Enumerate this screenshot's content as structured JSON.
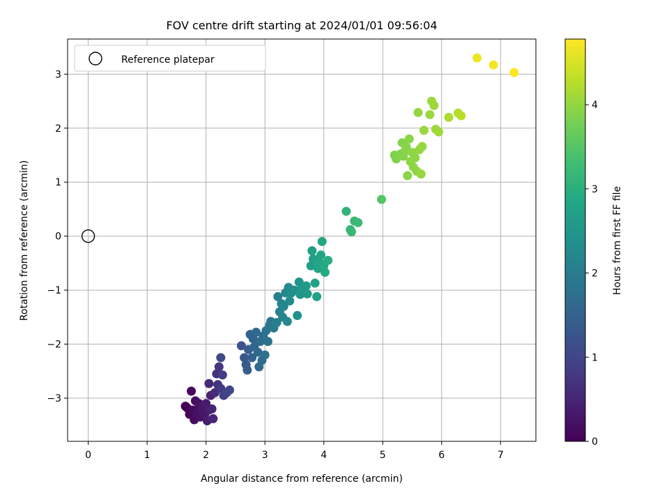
{
  "chart_data": {
    "type": "scatter",
    "title": "FOV centre drift starting at 2024/01/01 09:56:04",
    "xlabel": "Angular distance from reference (arcmin)",
    "ylabel": "Rotation from reference (arcmin)",
    "xlim": [
      -0.35,
      7.6
    ],
    "ylim": [
      -3.8,
      3.65
    ],
    "xticks": [
      "0",
      "1",
      "2",
      "3",
      "4",
      "5",
      "6",
      "7"
    ],
    "yticks": [
      "-3",
      "-2",
      "-1",
      "0",
      "1",
      "2",
      "3"
    ],
    "grid": true,
    "legend": {
      "placement": "top-left",
      "entries": [
        "Reference platepar"
      ]
    },
    "reference_point": {
      "x": 0,
      "y": 0
    },
    "colorbar": {
      "label": "Hours from first FF file",
      "range": [
        0,
        4.78
      ],
      "ticks": [
        "0",
        "1",
        "2",
        "3",
        "4"
      ],
      "colormap": "viridis"
    },
    "points": [
      {
        "x": 1.65,
        "y": -3.15,
        "t": 0.0
      },
      {
        "x": 1.68,
        "y": -3.18,
        "t": 0.03
      },
      {
        "x": 1.72,
        "y": -3.3,
        "t": 0.06
      },
      {
        "x": 1.75,
        "y": -2.87,
        "t": 0.1
      },
      {
        "x": 1.78,
        "y": -3.22,
        "t": 0.12
      },
      {
        "x": 1.8,
        "y": -3.4,
        "t": 0.15
      },
      {
        "x": 1.82,
        "y": -3.05,
        "t": 0.18
      },
      {
        "x": 1.85,
        "y": -3.25,
        "t": 0.2
      },
      {
        "x": 1.88,
        "y": -3.1,
        "t": 0.22
      },
      {
        "x": 1.9,
        "y": -3.35,
        "t": 0.25
      },
      {
        "x": 1.92,
        "y": -3.2,
        "t": 0.28
      },
      {
        "x": 1.95,
        "y": -3.15,
        "t": 0.3
      },
      {
        "x": 1.98,
        "y": -3.3,
        "t": 0.32
      },
      {
        "x": 2.0,
        "y": -3.1,
        "t": 0.35
      },
      {
        "x": 2.02,
        "y": -3.42,
        "t": 0.38
      },
      {
        "x": 2.05,
        "y": -3.22,
        "t": 0.4
      },
      {
        "x": 2.08,
        "y": -2.95,
        "t": 0.45
      },
      {
        "x": 2.1,
        "y": -3.2,
        "t": 0.48
      },
      {
        "x": 2.12,
        "y": -3.38,
        "t": 0.5
      },
      {
        "x": 2.05,
        "y": -2.73,
        "t": 0.55
      },
      {
        "x": 2.15,
        "y": -2.9,
        "t": 0.6
      },
      {
        "x": 2.18,
        "y": -2.55,
        "t": 0.65
      },
      {
        "x": 2.2,
        "y": -2.75,
        "t": 0.7
      },
      {
        "x": 2.22,
        "y": -2.42,
        "t": 0.75
      },
      {
        "x": 2.25,
        "y": -2.82,
        "t": 0.8
      },
      {
        "x": 2.28,
        "y": -2.57,
        "t": 0.85
      },
      {
        "x": 2.3,
        "y": -2.95,
        "t": 0.9
      },
      {
        "x": 2.35,
        "y": -2.9,
        "t": 0.95
      },
      {
        "x": 2.4,
        "y": -2.85,
        "t": 1.0
      },
      {
        "x": 2.25,
        "y": -2.25,
        "t": 1.05
      },
      {
        "x": 2.6,
        "y": -2.03,
        "t": 1.2
      },
      {
        "x": 2.65,
        "y": -2.25,
        "t": 1.3
      },
      {
        "x": 2.68,
        "y": -2.38,
        "t": 1.35
      },
      {
        "x": 2.7,
        "y": -2.48,
        "t": 1.4
      },
      {
        "x": 2.72,
        "y": -2.1,
        "t": 1.45
      },
      {
        "x": 2.75,
        "y": -1.82,
        "t": 1.5
      },
      {
        "x": 2.78,
        "y": -2.25,
        "t": 1.52
      },
      {
        "x": 2.8,
        "y": -1.9,
        "t": 1.55
      },
      {
        "x": 2.82,
        "y": -2.05,
        "t": 1.58
      },
      {
        "x": 2.85,
        "y": -1.78,
        "t": 1.6
      },
      {
        "x": 2.88,
        "y": -2.15,
        "t": 1.62
      },
      {
        "x": 2.9,
        "y": -2.42,
        "t": 1.65
      },
      {
        "x": 2.92,
        "y": -1.95,
        "t": 1.68
      },
      {
        "x": 2.95,
        "y": -2.3,
        "t": 1.7
      },
      {
        "x": 2.97,
        "y": -1.85,
        "t": 1.72
      },
      {
        "x": 3.0,
        "y": -2.2,
        "t": 1.75
      },
      {
        "x": 3.02,
        "y": -1.75,
        "t": 1.78
      },
      {
        "x": 3.05,
        "y": -1.95,
        "t": 1.8
      },
      {
        "x": 3.08,
        "y": -1.65,
        "t": 1.85
      },
      {
        "x": 3.1,
        "y": -1.58,
        "t": 1.9
      },
      {
        "x": 3.15,
        "y": -1.7,
        "t": 1.95
      },
      {
        "x": 3.2,
        "y": -1.6,
        "t": 2.0
      },
      {
        "x": 3.22,
        "y": -1.12,
        "t": 2.05
      },
      {
        "x": 3.25,
        "y": -1.4,
        "t": 2.1
      },
      {
        "x": 3.28,
        "y": -1.25,
        "t": 2.12
      },
      {
        "x": 3.3,
        "y": -1.5,
        "t": 2.15
      },
      {
        "x": 3.32,
        "y": -1.3,
        "t": 2.18
      },
      {
        "x": 3.35,
        "y": -1.05,
        "t": 2.2
      },
      {
        "x": 3.38,
        "y": -1.58,
        "t": 2.22
      },
      {
        "x": 3.4,
        "y": -0.95,
        "t": 2.25
      },
      {
        "x": 3.42,
        "y": -1.2,
        "t": 2.28
      },
      {
        "x": 3.45,
        "y": -1.05,
        "t": 2.3
      },
      {
        "x": 3.5,
        "y": -1.0,
        "t": 2.35
      },
      {
        "x": 3.55,
        "y": -1.47,
        "t": 2.4
      },
      {
        "x": 3.58,
        "y": -0.85,
        "t": 2.45
      },
      {
        "x": 3.6,
        "y": -1.08,
        "t": 2.48
      },
      {
        "x": 3.62,
        "y": -0.98,
        "t": 2.5
      },
      {
        "x": 3.7,
        "y": -0.92,
        "t": 2.55
      },
      {
        "x": 3.72,
        "y": -1.07,
        "t": 2.6
      },
      {
        "x": 3.78,
        "y": -0.55,
        "t": 2.65
      },
      {
        "x": 3.8,
        "y": -0.27,
        "t": 2.68
      },
      {
        "x": 3.82,
        "y": -0.42,
        "t": 2.7
      },
      {
        "x": 3.85,
        "y": -0.87,
        "t": 2.72
      },
      {
        "x": 3.88,
        "y": -1.12,
        "t": 2.75
      },
      {
        "x": 3.9,
        "y": -0.6,
        "t": 2.78
      },
      {
        "x": 3.92,
        "y": -0.48,
        "t": 2.8
      },
      {
        "x": 3.95,
        "y": -0.35,
        "t": 2.82
      },
      {
        "x": 3.97,
        "y": -0.1,
        "t": 2.85
      },
      {
        "x": 4.0,
        "y": -0.55,
        "t": 2.88
      },
      {
        "x": 4.02,
        "y": -0.67,
        "t": 2.9
      },
      {
        "x": 4.07,
        "y": -0.45,
        "t": 2.95
      },
      {
        "x": 4.38,
        "y": 0.46,
        "t": 3.1
      },
      {
        "x": 4.45,
        "y": 0.12,
        "t": 3.15
      },
      {
        "x": 4.47,
        "y": 0.08,
        "t": 3.18
      },
      {
        "x": 4.52,
        "y": 0.28,
        "t": 3.2
      },
      {
        "x": 4.58,
        "y": 0.25,
        "t": 3.22
      },
      {
        "x": 4.98,
        "y": 0.68,
        "t": 3.5
      },
      {
        "x": 5.2,
        "y": 1.5,
        "t": 3.85
      },
      {
        "x": 5.23,
        "y": 1.43,
        "t": 3.87
      },
      {
        "x": 5.3,
        "y": 1.52,
        "t": 3.88
      },
      {
        "x": 5.33,
        "y": 1.73,
        "t": 3.89
      },
      {
        "x": 5.35,
        "y": 1.48,
        "t": 3.9
      },
      {
        "x": 5.38,
        "y": 1.58,
        "t": 3.91
      },
      {
        "x": 5.4,
        "y": 1.65,
        "t": 3.92
      },
      {
        "x": 5.42,
        "y": 1.12,
        "t": 3.93
      },
      {
        "x": 5.45,
        "y": 1.8,
        "t": 3.94
      },
      {
        "x": 5.47,
        "y": 1.38,
        "t": 3.95
      },
      {
        "x": 5.5,
        "y": 1.55,
        "t": 3.96
      },
      {
        "x": 5.52,
        "y": 1.28,
        "t": 3.97
      },
      {
        "x": 5.55,
        "y": 1.45,
        "t": 3.98
      },
      {
        "x": 5.58,
        "y": 1.2,
        "t": 3.99
      },
      {
        "x": 5.6,
        "y": 2.29,
        "t": 4.0
      },
      {
        "x": 5.62,
        "y": 1.6,
        "t": 4.01
      },
      {
        "x": 5.65,
        "y": 1.15,
        "t": 4.02
      },
      {
        "x": 5.67,
        "y": 1.66,
        "t": 4.03
      },
      {
        "x": 5.7,
        "y": 1.96,
        "t": 4.04
      },
      {
        "x": 5.8,
        "y": 2.25,
        "t": 4.05
      },
      {
        "x": 5.83,
        "y": 2.5,
        "t": 4.06
      },
      {
        "x": 5.87,
        "y": 2.42,
        "t": 4.07
      },
      {
        "x": 5.9,
        "y": 1.98,
        "t": 4.08
      },
      {
        "x": 5.95,
        "y": 1.93,
        "t": 4.1
      },
      {
        "x": 6.12,
        "y": 2.2,
        "t": 4.2
      },
      {
        "x": 6.28,
        "y": 2.28,
        "t": 4.25
      },
      {
        "x": 6.33,
        "y": 2.23,
        "t": 4.28
      },
      {
        "x": 6.6,
        "y": 3.3,
        "t": 4.65
      },
      {
        "x": 6.88,
        "y": 3.17,
        "t": 4.72
      },
      {
        "x": 7.23,
        "y": 3.03,
        "t": 4.78
      }
    ]
  }
}
